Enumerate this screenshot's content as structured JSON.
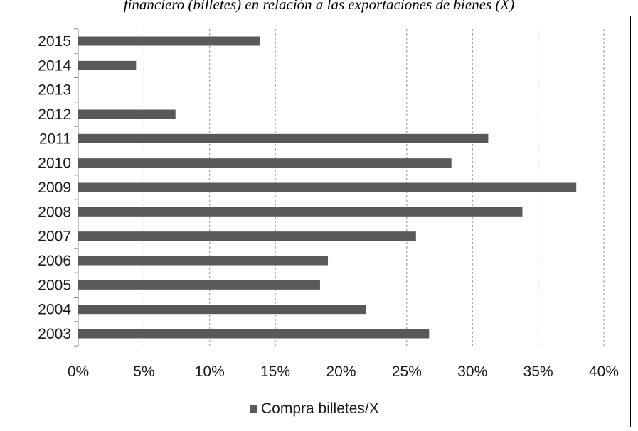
{
  "caption": "financiero (billetes) en relación a las exportaciones de bienes (X)",
  "chart_data": {
    "type": "bar",
    "orientation": "horizontal",
    "categories": [
      "2015",
      "2014",
      "2013",
      "2012",
      "2011",
      "2010",
      "2009",
      "2008",
      "2007",
      "2006",
      "2005",
      "2004",
      "2003"
    ],
    "series": [
      {
        "name": "Compra billetes/X",
        "values": [
          0.138,
          0.044,
          null,
          0.074,
          0.312,
          0.284,
          0.379,
          0.338,
          0.257,
          0.19,
          0.184,
          0.219,
          0.267
        ]
      }
    ],
    "xlim": [
      0,
      0.4
    ],
    "xticks": [
      0,
      0.05,
      0.1,
      0.15,
      0.2,
      0.25,
      0.3,
      0.35,
      0.4
    ],
    "xtick_labels": [
      "0%",
      "5%",
      "10%",
      "15%",
      "20%",
      "25%",
      "30%",
      "35%",
      "40%"
    ],
    "grid": "vertical dashed",
    "legend": "bottom",
    "bar_color": "#595959"
  }
}
